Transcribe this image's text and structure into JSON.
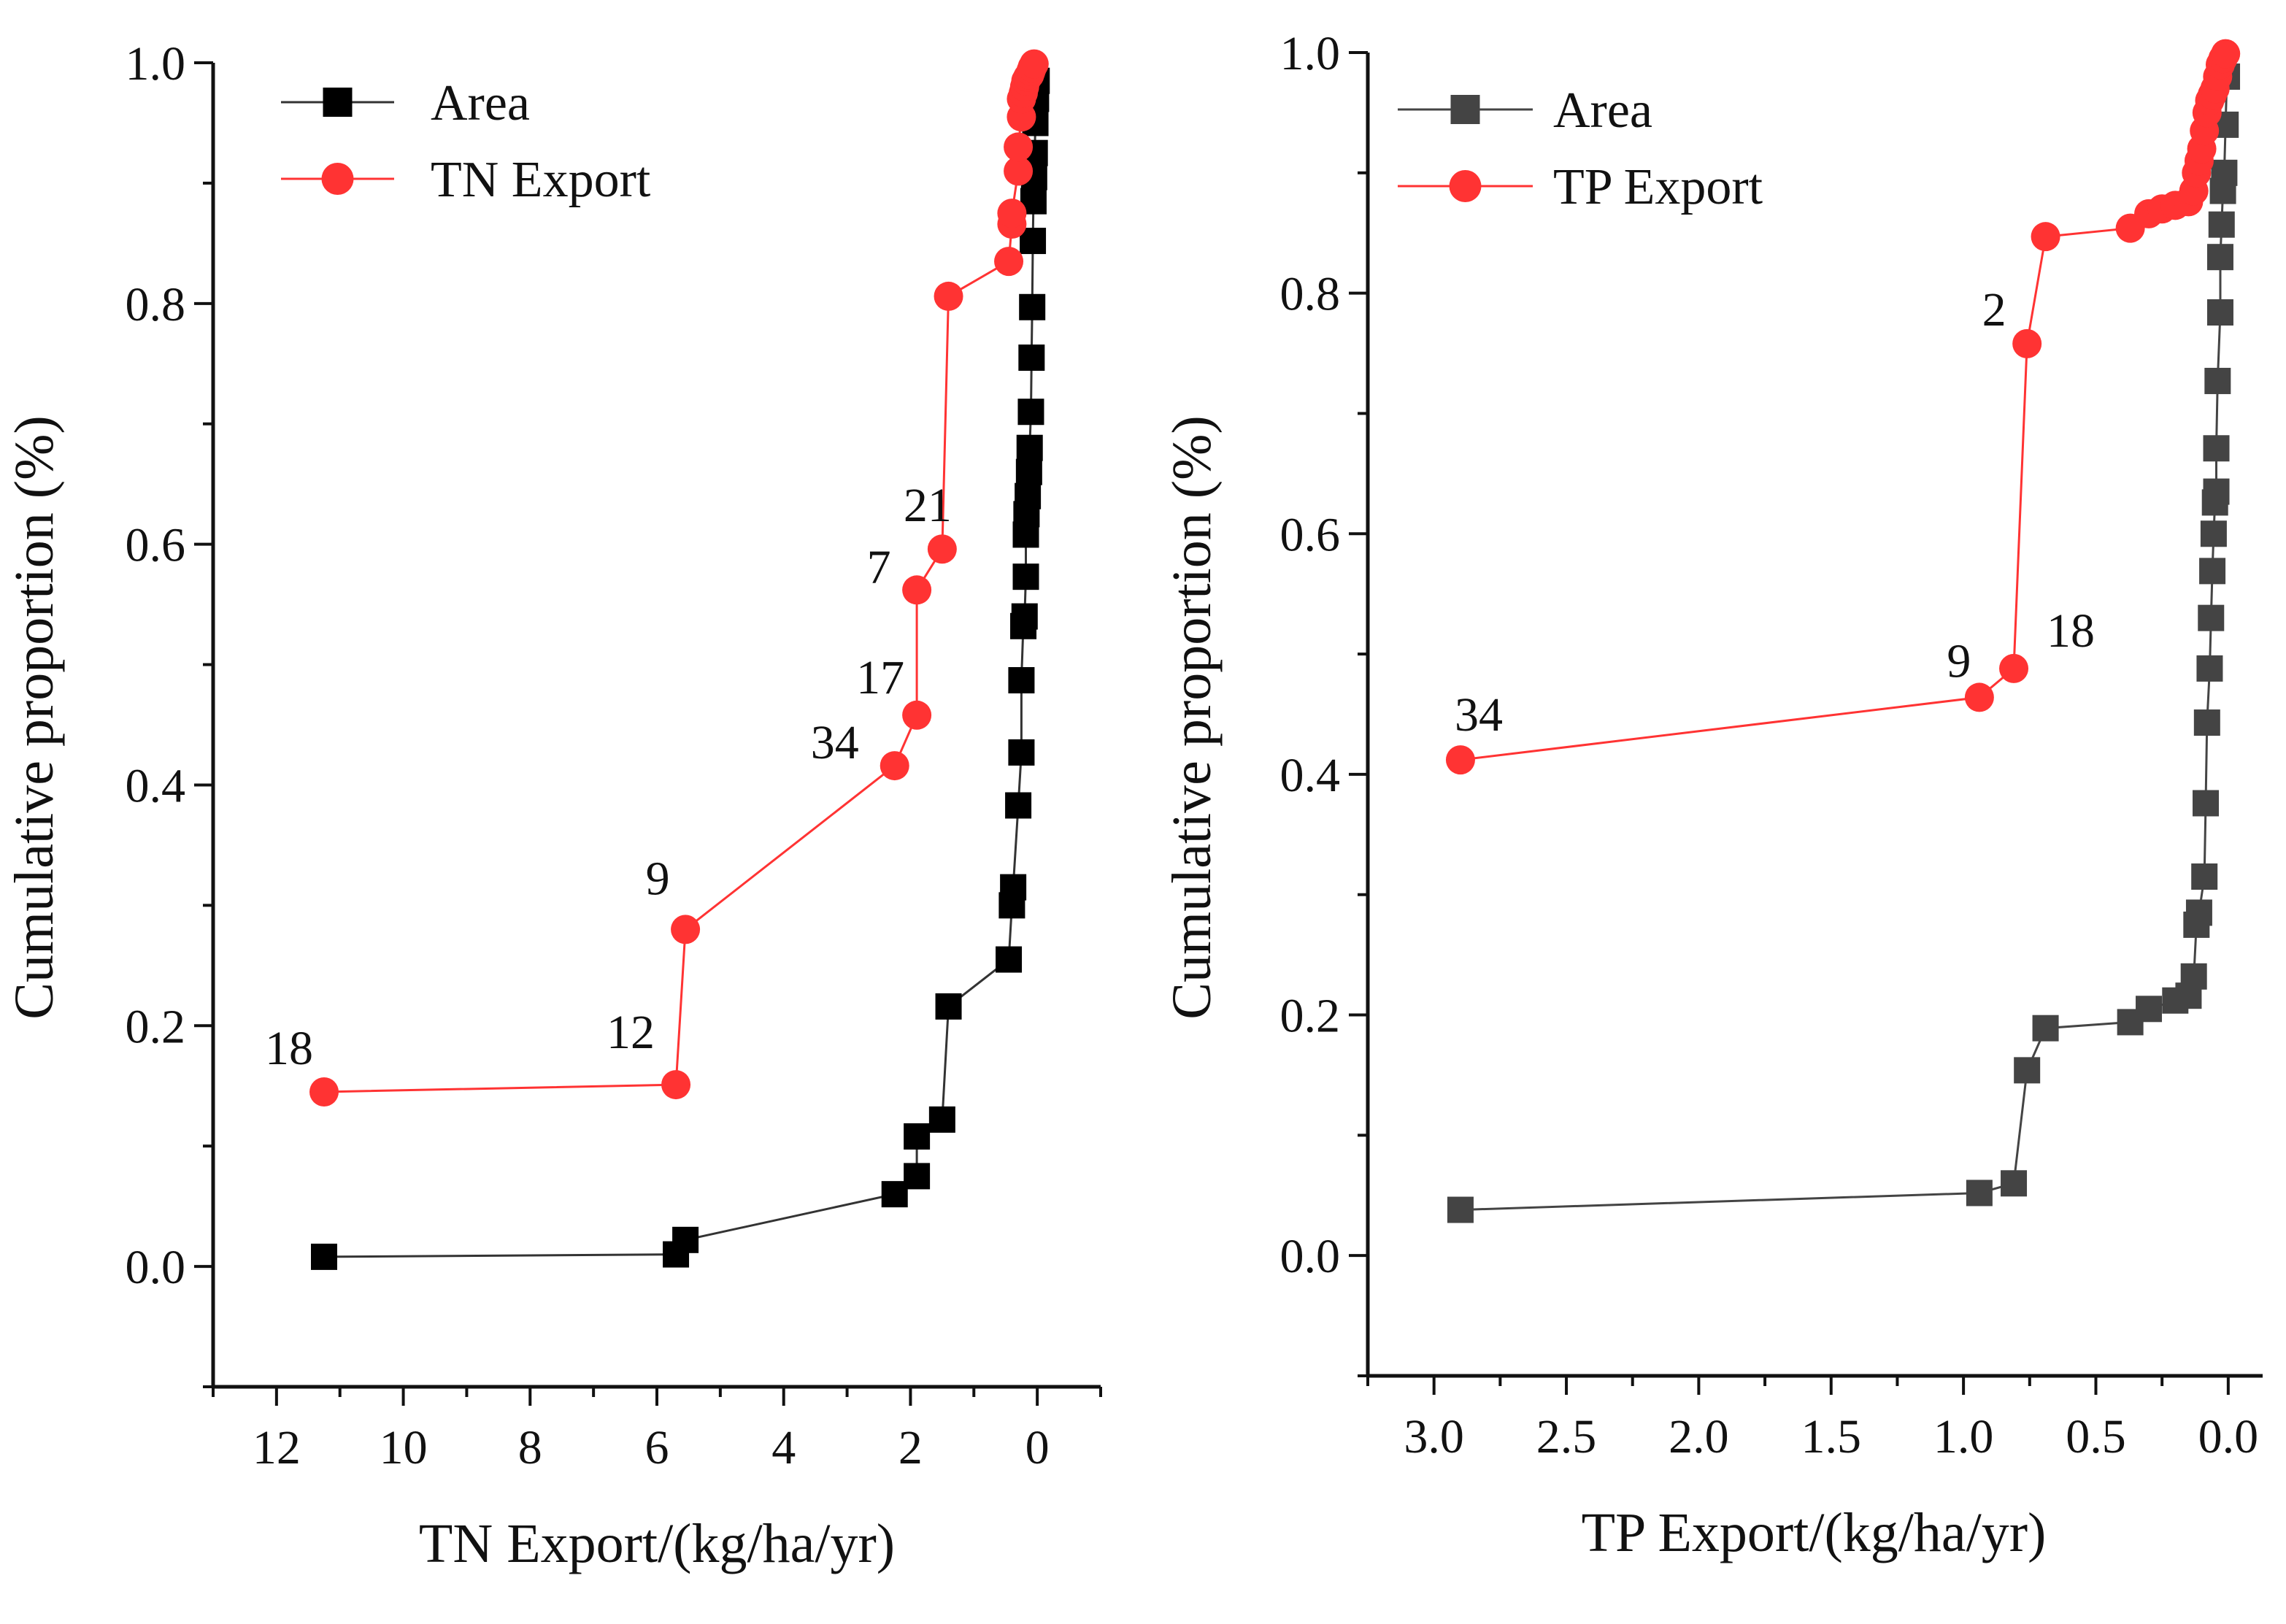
{
  "chart_data": [
    {
      "type": "line",
      "title": "",
      "xlabel": "TN Export/(kg/ha/yr)",
      "ylabel": "Cumulative proportion (%)",
      "x_reversed": true,
      "xlim": [
        13,
        -1
      ],
      "ylim": [
        -0.1,
        1.0
      ],
      "x_ticks": [
        12,
        10,
        8,
        6,
        4,
        2,
        0
      ],
      "y_ticks": [
        0.0,
        0.2,
        0.4,
        0.6,
        0.8,
        1.0
      ],
      "x_tick_labels": [
        "12",
        "10",
        "8",
        "6",
        "4",
        "2",
        "0"
      ],
      "y_tick_labels": [
        "0.0",
        "0.2",
        "0.4",
        "0.6",
        "0.8",
        "1.0"
      ],
      "legend_position": "top-left",
      "series": [
        {
          "name": "Area",
          "marker": "square",
          "color": "#000000",
          "line_color": "#333333",
          "x": [
            11.25,
            5.7,
            5.55,
            2.25,
            1.9,
            1.9,
            1.5,
            1.4,
            0.45,
            0.4,
            0.38,
            0.3,
            0.25,
            0.25,
            0.22,
            0.2,
            0.18,
            0.18,
            0.17,
            0.15,
            0.13,
            0.12,
            0.1,
            0.09,
            0.08,
            0.07,
            0.06,
            0.05,
            0.04,
            0.03,
            0.02,
            0.01
          ],
          "y": [
            0.008,
            0.01,
            0.022,
            0.06,
            0.075,
            0.108,
            0.122,
            0.216,
            0.255,
            0.3,
            0.315,
            0.383,
            0.427,
            0.487,
            0.532,
            0.54,
            0.573,
            0.608,
            0.625,
            0.64,
            0.66,
            0.68,
            0.71,
            0.755,
            0.797,
            0.852,
            0.885,
            0.905,
            0.925,
            0.95,
            0.97,
            0.985
          ]
        },
        {
          "name": "TN Export",
          "marker": "circle",
          "color": "#ff3333",
          "line_color": "#ff3333",
          "x": [
            11.25,
            5.7,
            5.55,
            2.25,
            1.9,
            1.9,
            1.5,
            1.4,
            0.45,
            0.4,
            0.4,
            0.3,
            0.3,
            0.25,
            0.25,
            0.22,
            0.2,
            0.18,
            0.15,
            0.12,
            0.1,
            0.08,
            0.05
          ],
          "y": [
            0.145,
            0.151,
            0.28,
            0.416,
            0.458,
            0.562,
            0.596,
            0.806,
            0.835,
            0.866,
            0.875,
            0.91,
            0.93,
            0.955,
            0.97,
            0.975,
            0.98,
            0.985,
            0.988,
            0.99,
            0.993,
            0.996,
            0.999
          ]
        }
      ],
      "annotations": [
        {
          "text": "18",
          "x": 11.25,
          "y": 0.145
        },
        {
          "text": "12",
          "x": 5.7,
          "y": 0.151
        },
        {
          "text": "9",
          "x": 5.55,
          "y": 0.28
        },
        {
          "text": "34",
          "x": 2.25,
          "y": 0.416
        },
        {
          "text": "17",
          "x": 1.9,
          "y": 0.458
        },
        {
          "text": "7",
          "x": 1.9,
          "y": 0.562
        },
        {
          "text": "21",
          "x": 1.5,
          "y": 0.596
        }
      ]
    },
    {
      "type": "line",
      "title": "",
      "xlabel": "TP Export/(kg/ha/yr)",
      "ylabel": "Cumulative proportion (%)",
      "x_reversed": true,
      "xlim": [
        3.25,
        -0.13
      ],
      "ylim": [
        -0.1,
        1.0
      ],
      "x_ticks": [
        3.0,
        2.5,
        2.0,
        1.5,
        1.0,
        0.5,
        0.0
      ],
      "y_ticks": [
        0.0,
        0.2,
        0.4,
        0.6,
        0.8,
        1.0
      ],
      "x_tick_labels": [
        "3.0",
        "2.5",
        "2.0",
        "1.5",
        "1.0",
        "0.5",
        "0.0"
      ],
      "y_tick_labels": [
        "0.0",
        "0.2",
        "0.4",
        "0.6",
        "0.8",
        "1.0"
      ],
      "legend_position": "top-left",
      "series": [
        {
          "name": "Area",
          "marker": "square",
          "color": "#444444",
          "line_color": "#444444",
          "x": [
            2.9,
            0.94,
            0.81,
            0.76,
            0.69,
            0.37,
            0.3,
            0.2,
            0.15,
            0.13,
            0.12,
            0.11,
            0.09,
            0.085,
            0.08,
            0.07,
            0.065,
            0.06,
            0.055,
            0.05,
            0.045,
            0.045,
            0.04,
            0.03,
            0.03,
            0.025,
            0.02,
            0.015,
            0.01,
            0.005
          ],
          "y": [
            0.038,
            0.052,
            0.06,
            0.154,
            0.189,
            0.194,
            0.205,
            0.212,
            0.216,
            0.232,
            0.275,
            0.285,
            0.315,
            0.376,
            0.443,
            0.488,
            0.53,
            0.569,
            0.6,
            0.626,
            0.635,
            0.671,
            0.727,
            0.784,
            0.83,
            0.857,
            0.885,
            0.9,
            0.94,
            0.98
          ]
        },
        {
          "name": "TP Export",
          "marker": "circle",
          "color": "#ff3333",
          "line_color": "#ff3333",
          "x": [
            2.9,
            0.94,
            0.81,
            0.76,
            0.69,
            0.37,
            0.3,
            0.25,
            0.2,
            0.15,
            0.13,
            0.12,
            0.11,
            0.1,
            0.09,
            0.08,
            0.07,
            0.06,
            0.05,
            0.04,
            0.03,
            0.02,
            0.01
          ],
          "y": [
            0.412,
            0.464,
            0.488,
            0.758,
            0.847,
            0.854,
            0.866,
            0.87,
            0.873,
            0.876,
            0.885,
            0.9,
            0.91,
            0.92,
            0.935,
            0.95,
            0.96,
            0.965,
            0.97,
            0.98,
            0.99,
            0.995,
            0.999
          ]
        }
      ],
      "annotations": [
        {
          "text": "34",
          "x": 2.9,
          "y": 0.412
        },
        {
          "text": "9",
          "x": 0.94,
          "y": 0.464
        },
        {
          "text": "18",
          "x": 0.81,
          "y": 0.488
        },
        {
          "text": "2",
          "x": 0.76,
          "y": 0.758
        }
      ]
    }
  ]
}
